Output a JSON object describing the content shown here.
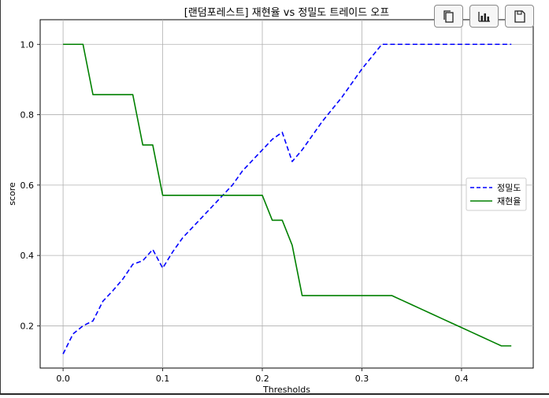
{
  "toolbar": {
    "buttons": [
      {
        "name": "copy-button",
        "icon": "copy-icon"
      },
      {
        "name": "chart-button",
        "icon": "bar-chart-icon"
      },
      {
        "name": "save-button",
        "icon": "save-icon"
      }
    ]
  },
  "chart_data": {
    "type": "line",
    "title": "[랜덤포레스트] 재현율 vs 정밀도 트레이드 오프",
    "xlabel": "Thresholds",
    "ylabel": "score",
    "xlim": [
      -0.023,
      0.472
    ],
    "ylim": [
      0.08,
      1.07
    ],
    "xticks": [
      0.0,
      0.1,
      0.2,
      0.3,
      0.4
    ],
    "xtick_labels": [
      "0.0",
      "0.1",
      "0.2",
      "0.3",
      "0.4"
    ],
    "yticks": [
      0.2,
      0.4,
      0.6,
      0.8,
      1.0
    ],
    "ytick_labels": [
      "0.2",
      "0.4",
      "0.6",
      "0.8",
      "1.0"
    ],
    "grid": true,
    "legend_position": "center-right",
    "series": [
      {
        "name": "정밀도",
        "color": "#0000ff",
        "dash": "dashed",
        "x": [
          0.0,
          0.01,
          0.02,
          0.03,
          0.04,
          0.05,
          0.06,
          0.07,
          0.08,
          0.09,
          0.1,
          0.11,
          0.12,
          0.13,
          0.14,
          0.15,
          0.16,
          0.17,
          0.18,
          0.19,
          0.2,
          0.21,
          0.22,
          0.23,
          0.24,
          0.25,
          0.26,
          0.27,
          0.28,
          0.29,
          0.3,
          0.31,
          0.32,
          0.33,
          0.34,
          0.35,
          0.36,
          0.37,
          0.38,
          0.39,
          0.4,
          0.41,
          0.42,
          0.43,
          0.44,
          0.45
        ],
        "y": [
          0.12,
          0.177,
          0.2,
          0.214,
          0.27,
          0.3,
          0.333,
          0.375,
          0.385,
          0.417,
          0.364,
          0.41,
          0.45,
          0.48,
          0.51,
          0.54,
          0.57,
          0.6,
          0.64,
          0.67,
          0.7,
          0.73,
          0.75,
          0.667,
          0.7,
          0.74,
          0.78,
          0.815,
          0.85,
          0.89,
          0.93,
          0.965,
          1.0,
          1.0,
          1.0,
          1.0,
          1.0,
          1.0,
          1.0,
          1.0,
          1.0,
          1.0,
          1.0,
          1.0,
          1.0,
          1.0
        ]
      },
      {
        "name": "재현율",
        "color": "#008000",
        "dash": "solid",
        "x": [
          0.0,
          0.01,
          0.02,
          0.03,
          0.04,
          0.05,
          0.06,
          0.07,
          0.08,
          0.09,
          0.1,
          0.11,
          0.12,
          0.13,
          0.14,
          0.15,
          0.16,
          0.17,
          0.18,
          0.19,
          0.2,
          0.21,
          0.22,
          0.23,
          0.24,
          0.25,
          0.26,
          0.27,
          0.28,
          0.29,
          0.3,
          0.31,
          0.32,
          0.33,
          0.34,
          0.35,
          0.36,
          0.37,
          0.38,
          0.39,
          0.4,
          0.41,
          0.42,
          0.43,
          0.44,
          0.45
        ],
        "y": [
          1.0,
          1.0,
          1.0,
          0.857,
          0.857,
          0.857,
          0.857,
          0.857,
          0.714,
          0.714,
          0.571,
          0.571,
          0.571,
          0.571,
          0.571,
          0.571,
          0.571,
          0.571,
          0.571,
          0.571,
          0.571,
          0.5,
          0.5,
          0.429,
          0.286,
          0.286,
          0.286,
          0.286,
          0.286,
          0.286,
          0.286,
          0.286,
          0.286,
          0.286,
          0.273,
          0.26,
          0.247,
          0.234,
          0.221,
          0.208,
          0.195,
          0.182,
          0.169,
          0.156,
          0.143,
          0.143
        ]
      }
    ]
  }
}
